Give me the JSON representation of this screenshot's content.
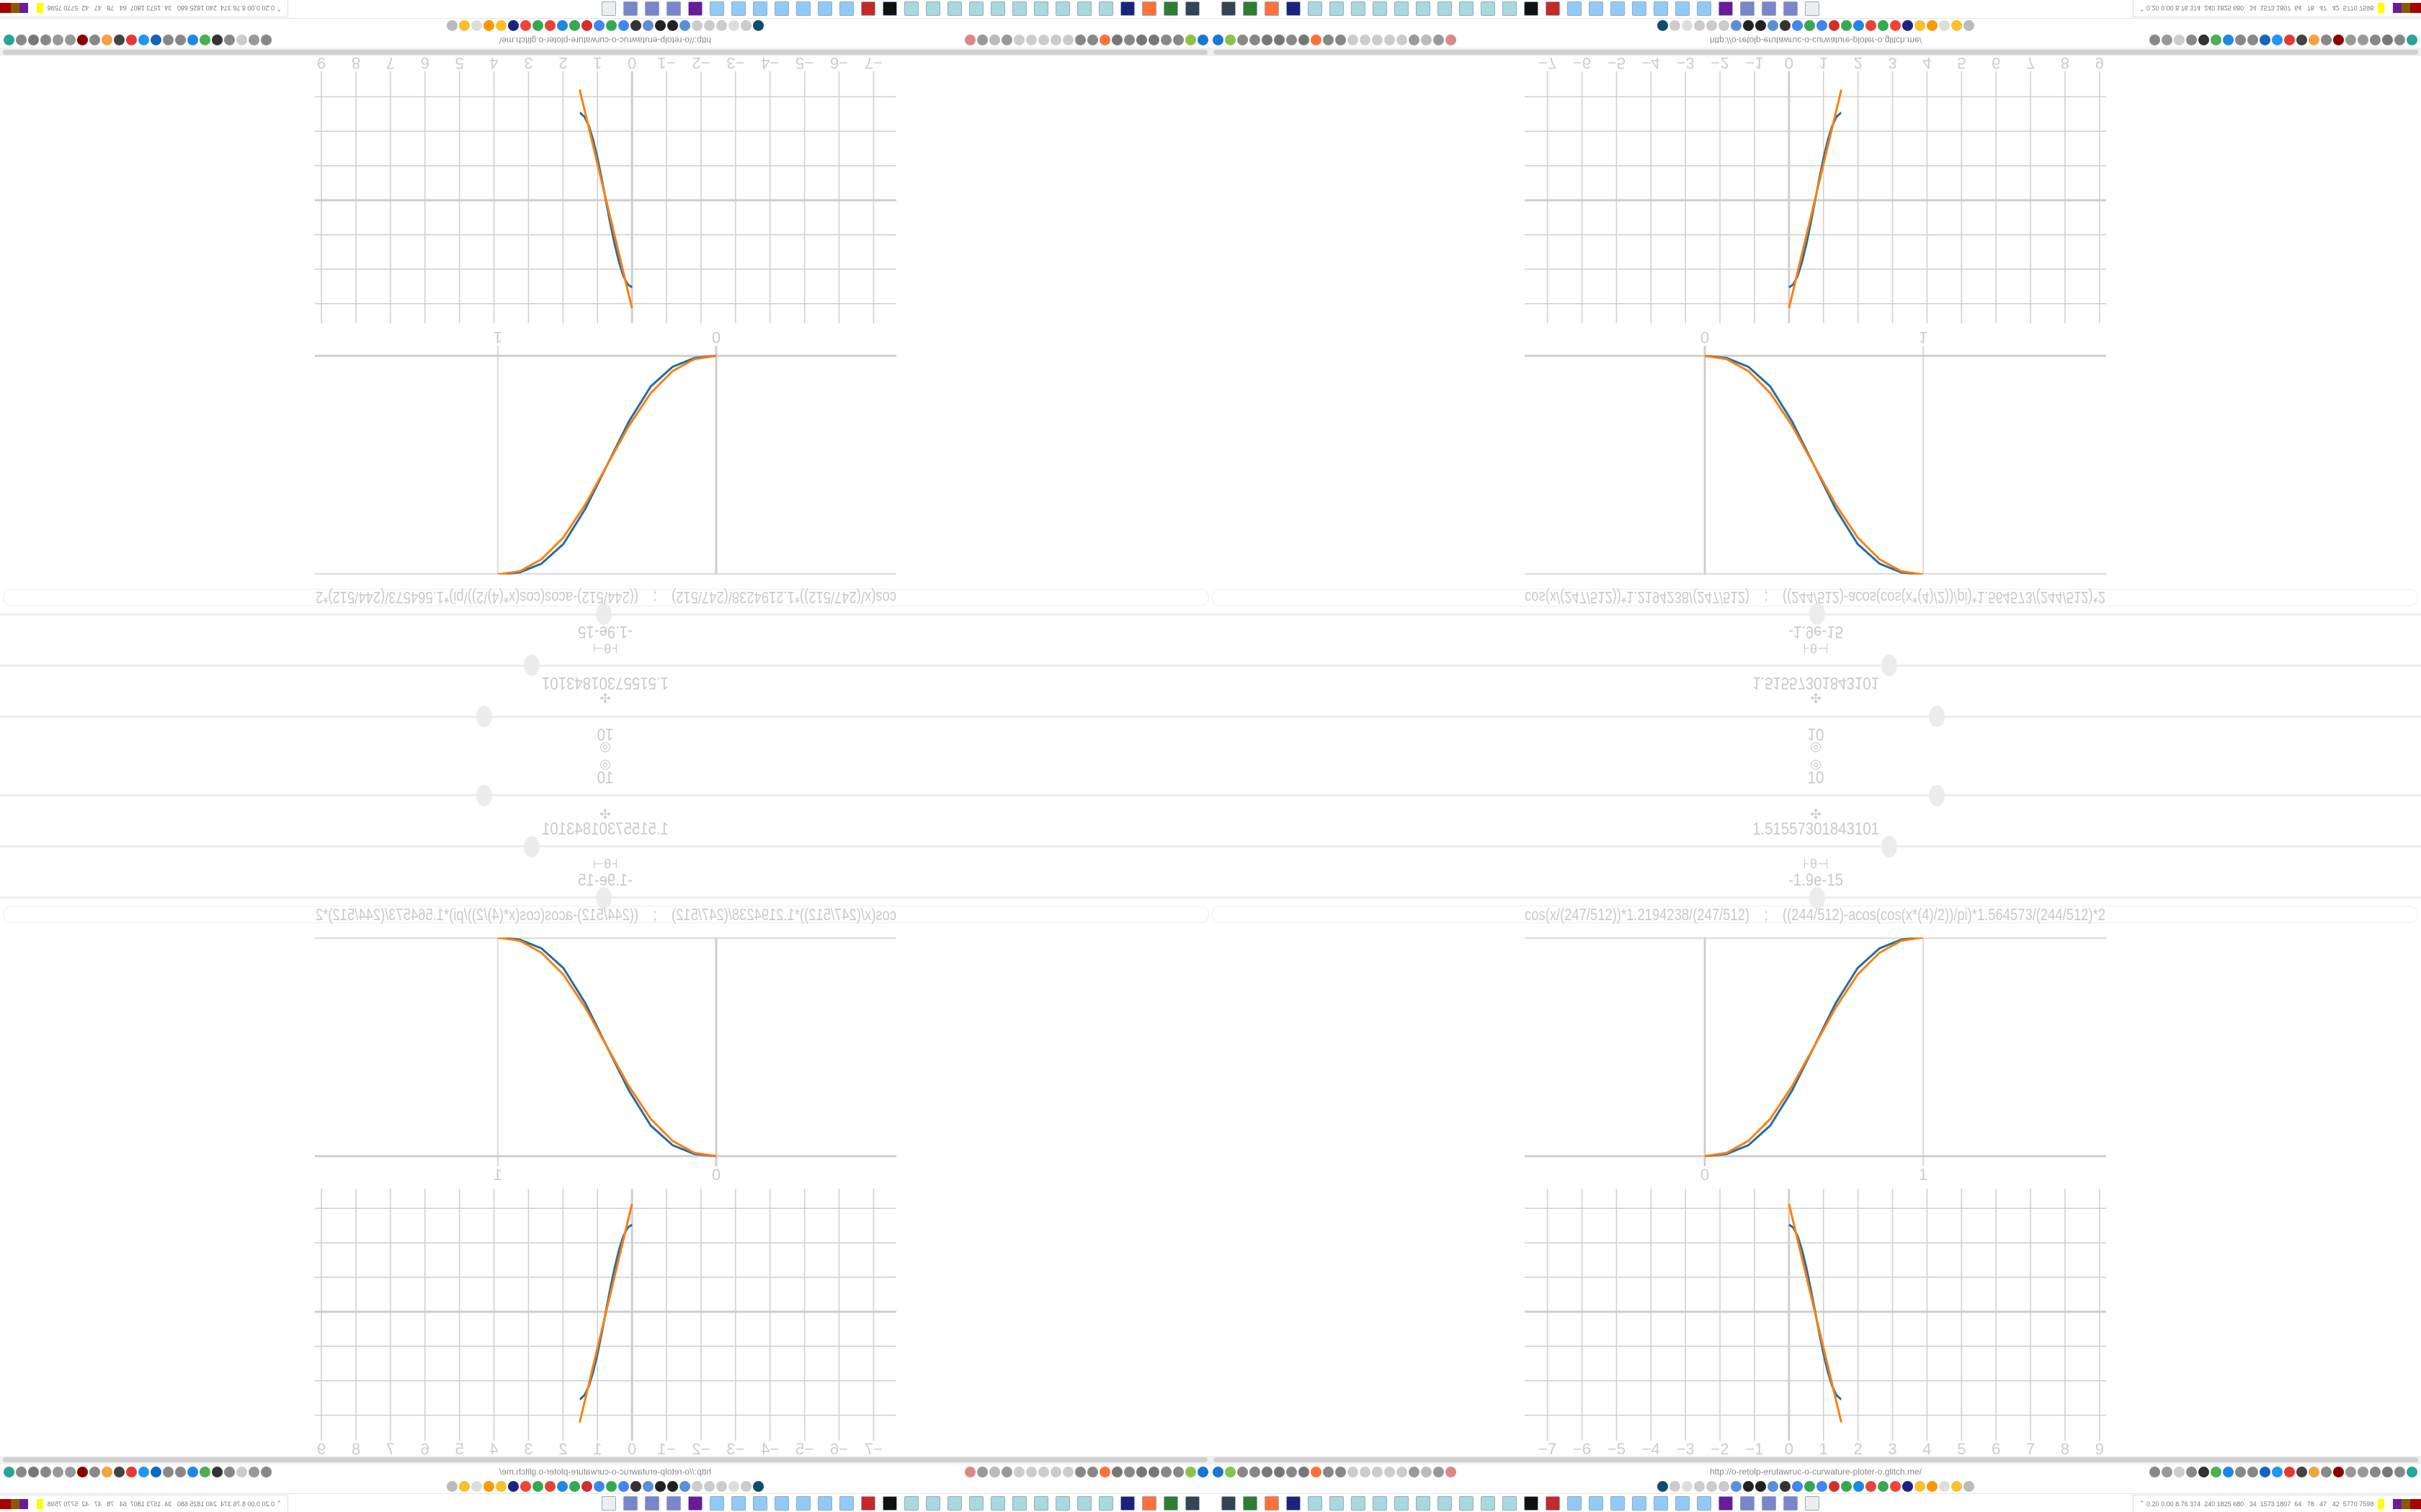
{
  "sliders": [
    {
      "icon": "target-icon",
      "glyph": "◎",
      "value": "10",
      "fraction": 0.6
    },
    {
      "icon": "clover-icon",
      "glyph": "✣",
      "value": "1.51557301843101",
      "fraction": 0.561
    },
    {
      "icon": "theta-icon",
      "glyph": "⊦θ⊣",
      "value": "-1.9e-15",
      "fraction": 0.501
    }
  ],
  "formula": "cos(x/(247/512))*1.2194238/(247/512)    ;    ((244/512)-acos(cos(x*(4)/2))/pi)*1.564573/(244/512)*2",
  "browser": {
    "url": "http://o-retolp-erutawruc-o-curwature-ploter-o.glitch.me/",
    "toolbar_left": [
      {
        "name": "funnel-icon",
        "color": "#1976d2"
      },
      {
        "name": "chrome-icon",
        "color": "#8bc34a"
      },
      {
        "name": "globe-icon",
        "color": "#888"
      },
      {
        "name": "globe-icon",
        "color": "#888"
      },
      {
        "name": "arc-icon",
        "color": "#777"
      },
      {
        "name": "arc-icon",
        "color": "#777"
      },
      {
        "name": "globe-icon",
        "color": "#888"
      },
      {
        "name": "wrench-icon",
        "color": "#777"
      },
      {
        "name": "firefox-icon",
        "color": "#ff7139"
      },
      {
        "name": "gear-icon",
        "color": "#888"
      },
      {
        "name": "globe-icon",
        "color": "#888"
      },
      {
        "name": "dot-icon",
        "color": "#ccc"
      },
      {
        "name": "dot-icon",
        "color": "#ccc"
      },
      {
        "name": "dot-icon",
        "color": "#ccc"
      },
      {
        "name": "dot-icon",
        "color": "#ccc"
      },
      {
        "name": "dot-icon",
        "color": "#ccc"
      },
      {
        "name": "folder-icon",
        "color": "#999"
      },
      {
        "name": "back-arrow-icon",
        "color": "#bbb"
      },
      {
        "name": "shield-icon",
        "color": "#999"
      },
      {
        "name": "bookmark-slash-icon",
        "color": "#d88"
      }
    ],
    "toolbar_right": [
      {
        "name": "translate-icon",
        "color": "#888"
      },
      {
        "name": "star-icon",
        "color": "#999"
      },
      {
        "name": "forward-icon",
        "color": "#ccc"
      },
      {
        "name": "reload-icon",
        "color": "#888"
      },
      {
        "name": "download-icon",
        "color": "#333"
      },
      {
        "name": "pen-icon",
        "color": "#4caf50"
      },
      {
        "name": "a-badge-icon",
        "color": "#1e88e5"
      },
      {
        "name": "shield-icon",
        "color": "#888"
      },
      {
        "name": "gear-icon",
        "color": "#888"
      },
      {
        "name": "ublock-icon",
        "color": "#1565c0"
      },
      {
        "name": "upload-icon",
        "color": "#2196f3"
      },
      {
        "name": "record-icon",
        "color": "#e53935"
      },
      {
        "name": "trash-icon",
        "color": "#444"
      },
      {
        "name": "globe-icon",
        "color": "#f4a340"
      },
      {
        "name": "id-icon",
        "color": "#888"
      },
      {
        "name": "jd-icon",
        "color": "#8b0000"
      },
      {
        "name": "globe-icon",
        "color": "#999"
      },
      {
        "name": "globe-icon",
        "color": "#999"
      },
      {
        "name": "puzzle-icon",
        "color": "#888"
      },
      {
        "name": "wrench-icon",
        "color": "#777"
      },
      {
        "name": "gear-icon",
        "color": "#888"
      },
      {
        "name": "status-dot-icon",
        "color": "#26a69a"
      }
    ],
    "bookmarks": [
      {
        "name": "bookmark-icon",
        "color": "#0b4f6c"
      },
      {
        "name": "mute-icon",
        "color": "#ccc"
      },
      {
        "name": "cc-icon",
        "color": "#ddd"
      },
      {
        "name": "mute-icon",
        "color": "#ccc"
      },
      {
        "name": "mute-icon",
        "color": "#ccc"
      },
      {
        "name": "audio-icon",
        "color": "#ccc"
      },
      {
        "name": "bookmark-icon",
        "color": "#5b8fd6"
      },
      {
        "name": "wikipedia-icon",
        "color": "#222"
      },
      {
        "name": "bookmark-icon",
        "color": "#222"
      },
      {
        "name": "bookmark-icon",
        "color": "#5b8fd6"
      },
      {
        "name": "museum-icon",
        "color": "#333"
      },
      {
        "name": "translate-icon",
        "color": "#4285f4"
      },
      {
        "name": "google-icon",
        "color": "#34a853"
      },
      {
        "name": "google-icon",
        "color": "#4285f4"
      },
      {
        "name": "bookmark-icon",
        "color": "#d32f2f"
      },
      {
        "name": "google-icon",
        "color": "#34a853"
      },
      {
        "name": "bookmark-icon",
        "color": "#1e88e5"
      },
      {
        "name": "google-icon",
        "color": "#ea4335"
      },
      {
        "name": "google-icon",
        "color": "#34a853"
      },
      {
        "name": "yandex-icon",
        "color": "#f44336"
      },
      {
        "name": "grid-icon",
        "color": "#1a237e"
      },
      {
        "name": "image-icon",
        "color": "#fbc02d"
      },
      {
        "name": "sun-icon",
        "color": "#ff9800"
      },
      {
        "name": "cc-icon",
        "color": "#ddd"
      },
      {
        "name": "image-icon",
        "color": "#fbc02d"
      },
      {
        "name": "hourglass-icon",
        "color": "#bbb"
      }
    ],
    "taskbar": [
      {
        "name": "monitor-icon",
        "color": "#345"
      },
      {
        "name": "terminal-icon",
        "color": "#2e7d32"
      },
      {
        "name": "firefox-icon",
        "color": "#ff7139"
      },
      {
        "name": "floppy-icon",
        "color": "#1a237e"
      },
      {
        "name": "notepad-icon",
        "color": "#a8d8e0"
      },
      {
        "name": "notepad-icon",
        "color": "#a8d8e0"
      },
      {
        "name": "notepad-icon",
        "color": "#a8d8e0"
      },
      {
        "name": "notepad-icon",
        "color": "#a8d8e0"
      },
      {
        "name": "notepad-icon",
        "color": "#a8d8e0"
      },
      {
        "name": "notepad-icon",
        "color": "#a8d8e0"
      },
      {
        "name": "notepad-icon",
        "color": "#a8d8e0"
      },
      {
        "name": "notepad-icon",
        "color": "#a8d8e0"
      },
      {
        "name": "notepad-icon",
        "color": "#a8d8e0"
      },
      {
        "name": "notepad-icon",
        "color": "#a8d8e0"
      },
      {
        "name": "inkscape-icon",
        "color": "#111"
      },
      {
        "name": "settings-icon",
        "color": "#c62828"
      },
      {
        "name": "calculator-icon",
        "color": "#90caf9"
      },
      {
        "name": "calculator-icon",
        "color": "#90caf9"
      },
      {
        "name": "calculator-icon",
        "color": "#90caf9"
      },
      {
        "name": "calculator-icon",
        "color": "#90caf9"
      },
      {
        "name": "calculator-icon",
        "color": "#90caf9"
      },
      {
        "name": "calculator-icon",
        "color": "#90caf9"
      },
      {
        "name": "calculator-icon",
        "color": "#90caf9"
      },
      {
        "name": "app-icon",
        "color": "#6a1b9a"
      },
      {
        "name": "folder-icon",
        "color": "#7986cb"
      },
      {
        "name": "folder-icon",
        "color": "#7986cb"
      },
      {
        "name": "folder-icon",
        "color": "#7986cb"
      },
      {
        "name": "app-icon",
        "color": "#eee"
      }
    ],
    "tray_stats": "0.20 0.00 8.76 374  240 1825 680   34  1573 1807  64   78   47   42  5770 7598"
  },
  "chart_data": [
    {
      "type": "line",
      "xticks": [
        0,
        1
      ],
      "xlim": [
        -0.825,
        1.838
      ],
      "ylim": [
        -0.047,
        1
      ],
      "gridlines_x": [
        0,
        1
      ],
      "gridlines_y": [
        0,
        1
      ],
      "series": [
        {
          "color": "#1f6fa8",
          "x": [
            0,
            0.1,
            0.2,
            0.3,
            0.4,
            0.5,
            0.6,
            0.7,
            0.8,
            0.9,
            1.0
          ],
          "y": [
            0,
            0.01,
            0.05,
            0.14,
            0.3,
            0.5,
            0.7,
            0.86,
            0.95,
            0.99,
            1
          ]
        },
        {
          "color": "#ff7f0e",
          "x": [
            0,
            0.1,
            0.2,
            0.3,
            0.4,
            0.5,
            0.6,
            0.7,
            0.8,
            0.9,
            1.0
          ],
          "y": [
            0,
            0.015,
            0.07,
            0.17,
            0.32,
            0.5,
            0.68,
            0.83,
            0.93,
            0.985,
            1
          ]
        }
      ]
    },
    {
      "type": "line",
      "xticks": [
        -7,
        -6,
        -5,
        -4,
        -3,
        -2,
        -1,
        0,
        1,
        2,
        3,
        4,
        5,
        6,
        7,
        8,
        9
      ],
      "xlim": [
        -7.66,
        9.19
      ],
      "ylim": [
        -3.74,
        3.57
      ],
      "grid": true,
      "gridlines_x": [
        -7,
        -6,
        -5,
        -4,
        -3,
        -2,
        -1,
        0,
        1,
        2,
        3,
        4,
        5,
        6,
        7,
        8,
        9
      ],
      "gridlines_y": [
        -3,
        -2,
        -1,
        0,
        1,
        2,
        3
      ],
      "series": [
        {
          "color": "#1f6fa8",
          "x": [
            0,
            0.125,
            0.25,
            0.375,
            0.5,
            0.625,
            0.75,
            0.875,
            1.0,
            1.125,
            1.25,
            1.375,
            1.5,
            1.5156
          ],
          "y": [
            2.53,
            2.44,
            2.2,
            1.8,
            1.29,
            0.69,
            0.04,
            -0.61,
            -1.22,
            -1.74,
            -2.15,
            -2.42,
            -2.53,
            -2.53
          ]
        },
        {
          "color": "#ff7f0e",
          "x": [
            0,
            0.5,
            1.0,
            1.5,
            1.5156
          ],
          "y": [
            3.13,
            1.04,
            -1.05,
            -3.14,
            -3.21
          ]
        }
      ]
    }
  ]
}
